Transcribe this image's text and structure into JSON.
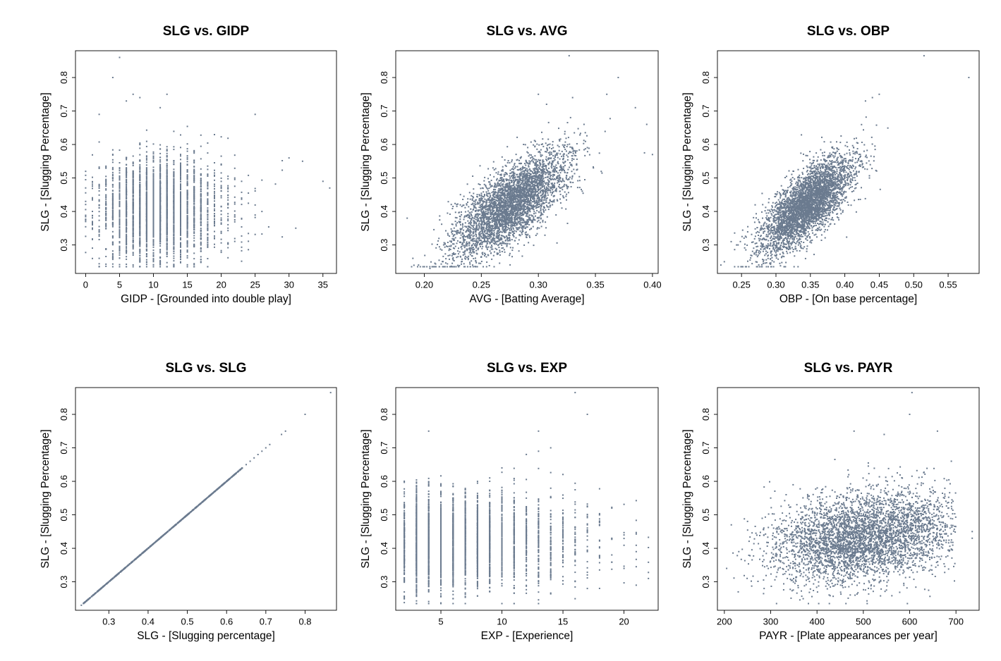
{
  "figure": {
    "point_color": "#6b7b8f",
    "axis_color": "#000000",
    "background": "#ffffff"
  },
  "chart_data": [
    {
      "type": "scatter",
      "title": "SLG vs. GIDP",
      "xlabel": "GIDP - [Grounded into double play]",
      "ylabel": "SLG - [Slugging Percentage]",
      "xlim": [
        -1.5,
        37
      ],
      "ylim": [
        0.215,
        0.88
      ],
      "xticks": [
        0,
        5,
        10,
        15,
        20,
        25,
        30,
        35
      ],
      "xtick_labels": [
        "0",
        "5",
        "10",
        "15",
        "20",
        "25",
        "30",
        "35"
      ],
      "yticks": [
        0.3,
        0.4,
        0.5,
        0.6,
        0.7,
        0.8
      ],
      "ytick_labels": [
        "0.3",
        "0.4",
        "0.5",
        "0.6",
        "0.7",
        "0.8"
      ],
      "x_discrete": true,
      "shape": {
        "kind": "gidp",
        "n": 3000,
        "x_min": 0,
        "x_max": 36,
        "x_peak": 10,
        "y_mean": 0.41,
        "y_sd": 0.075
      },
      "highlight_points": [
        [
          5,
          0.86
        ],
        [
          4,
          0.8
        ],
        [
          7,
          0.75
        ],
        [
          12,
          0.75
        ],
        [
          8,
          0.74
        ],
        [
          6,
          0.73
        ],
        [
          11,
          0.71
        ],
        [
          25,
          0.69
        ],
        [
          2,
          0.69
        ],
        [
          36,
          0.47
        ],
        [
          35,
          0.49
        ],
        [
          31,
          0.35
        ],
        [
          32,
          0.55
        ],
        [
          30,
          0.56
        ],
        [
          0,
          0.43
        ],
        [
          1,
          0.36
        ],
        [
          2,
          0.26
        ]
      ]
    },
    {
      "type": "scatter",
      "title": "SLG vs. AVG",
      "xlabel": "AVG - [Batting Average]",
      "ylabel": "SLG - [Slugging Percentage]",
      "xlim": [
        0.175,
        0.405
      ],
      "ylim": [
        0.215,
        0.88
      ],
      "xticks": [
        0.2,
        0.25,
        0.3,
        0.35,
        0.4
      ],
      "xtick_labels": [
        "0.20",
        "0.25",
        "0.30",
        "0.35",
        "0.40"
      ],
      "yticks": [
        0.3,
        0.4,
        0.5,
        0.6,
        0.7,
        0.8
      ],
      "ytick_labels": [
        "0.3",
        "0.4",
        "0.5",
        "0.6",
        "0.7",
        "0.8"
      ],
      "x_discrete": false,
      "shape": {
        "kind": "avg",
        "n": 4000,
        "x_mean": 0.275,
        "x_sd": 0.025,
        "x_min": 0.185,
        "x_max": 0.4,
        "slope": 2.2,
        "y_sd": 0.055
      },
      "highlight_points": [
        [
          0.327,
          0.865
        ],
        [
          0.37,
          0.8
        ],
        [
          0.3,
          0.75
        ],
        [
          0.385,
          0.71
        ],
        [
          0.36,
          0.75
        ],
        [
          0.395,
          0.66
        ],
        [
          0.4,
          0.57
        ],
        [
          0.393,
          0.575
        ],
        [
          0.185,
          0.38
        ],
        [
          0.19,
          0.26
        ],
        [
          0.195,
          0.24
        ],
        [
          0.205,
          0.23
        ],
        [
          0.33,
          0.74
        ]
      ]
    },
    {
      "type": "scatter",
      "title": "SLG vs. OBP",
      "xlabel": "OBP - [On base percentage]",
      "ylabel": "SLG - [Slugging Percentage]",
      "xlim": [
        0.215,
        0.595
      ],
      "ylim": [
        0.215,
        0.88
      ],
      "xticks": [
        0.25,
        0.3,
        0.35,
        0.4,
        0.45,
        0.5,
        0.55
      ],
      "xtick_labels": [
        "0.25",
        "0.30",
        "0.35",
        "0.40",
        "0.45",
        "0.50",
        "0.55"
      ],
      "yticks": [
        0.3,
        0.4,
        0.5,
        0.6,
        0.7,
        0.8
      ],
      "ytick_labels": [
        "0.3",
        "0.4",
        "0.5",
        "0.6",
        "0.7",
        "0.8"
      ],
      "x_discrete": false,
      "shape": {
        "kind": "obp",
        "n": 4000,
        "x_mean": 0.345,
        "x_sd": 0.033,
        "x_min": 0.24,
        "x_max": 0.48,
        "slope": 1.55,
        "y_sd": 0.05
      },
      "highlight_points": [
        [
          0.515,
          0.865
        ],
        [
          0.58,
          0.8
        ],
        [
          0.45,
          0.75
        ],
        [
          0.44,
          0.74
        ],
        [
          0.43,
          0.73
        ],
        [
          0.22,
          0.24
        ],
        [
          0.225,
          0.25
        ],
        [
          0.235,
          0.31
        ],
        [
          0.245,
          0.3
        ]
      ]
    },
    {
      "type": "scatter",
      "title": "SLG vs. SLG",
      "xlabel": "SLG - [Slugging percentage]",
      "ylabel": "SLG - [Slugging Percentage]",
      "xlim": [
        0.215,
        0.88
      ],
      "ylim": [
        0.215,
        0.88
      ],
      "xticks": [
        0.3,
        0.4,
        0.5,
        0.6,
        0.7,
        0.8
      ],
      "xtick_labels": [
        "0.3",
        "0.4",
        "0.5",
        "0.6",
        "0.7",
        "0.8"
      ],
      "yticks": [
        0.3,
        0.4,
        0.5,
        0.6,
        0.7,
        0.8
      ],
      "ytick_labels": [
        "0.3",
        "0.4",
        "0.5",
        "0.6",
        "0.7",
        "0.8"
      ],
      "x_discrete": false,
      "shape": {
        "kind": "identity",
        "n": 900,
        "x_min": 0.235,
        "x_max": 0.64
      },
      "highlight_points": [
        [
          0.865,
          0.865
        ],
        [
          0.8,
          0.8
        ],
        [
          0.75,
          0.75
        ],
        [
          0.74,
          0.74
        ],
        [
          0.71,
          0.71
        ],
        [
          0.7,
          0.7
        ],
        [
          0.69,
          0.69
        ],
        [
          0.68,
          0.68
        ],
        [
          0.67,
          0.67
        ],
        [
          0.66,
          0.66
        ],
        [
          0.65,
          0.65
        ],
        [
          0.23,
          0.23
        ],
        [
          0.24,
          0.24
        ]
      ]
    },
    {
      "type": "scatter",
      "title": "SLG vs. EXP",
      "xlabel": "EXP - [Experience]",
      "ylabel": "SLG - [Slugging Percentage]",
      "xlim": [
        1.3,
        22.8
      ],
      "ylim": [
        0.215,
        0.88
      ],
      "xticks": [
        5,
        10,
        15,
        20
      ],
      "xtick_labels": [
        "5",
        "10",
        "15",
        "20"
      ],
      "yticks": [
        0.3,
        0.4,
        0.5,
        0.6,
        0.7,
        0.8
      ],
      "ytick_labels": [
        "0.3",
        "0.4",
        "0.5",
        "0.6",
        "0.7",
        "0.8"
      ],
      "x_discrete": true,
      "shape": {
        "kind": "exp",
        "n": 3200,
        "x_min": 2,
        "x_max": 22,
        "y_mean": 0.42,
        "y_sd": 0.07
      },
      "highlight_points": [
        [
          16,
          0.865
        ],
        [
          17,
          0.8
        ],
        [
          4,
          0.75
        ],
        [
          13,
          0.75
        ],
        [
          14,
          0.7
        ],
        [
          17,
          0.28
        ],
        [
          21,
          0.29
        ],
        [
          22,
          0.31
        ],
        [
          20,
          0.34
        ],
        [
          21,
          0.39
        ],
        [
          19,
          0.43
        ],
        [
          20,
          0.44
        ],
        [
          19,
          0.52
        ],
        [
          18,
          0.5
        ]
      ]
    },
    {
      "type": "scatter",
      "title": "SLG vs. PAYR",
      "xlabel": "PAYR - [Plate appearances per year]",
      "ylabel": "SLG - [Slugging Percentage]",
      "xlim": [
        185,
        750
      ],
      "ylim": [
        0.215,
        0.88
      ],
      "xticks": [
        200,
        300,
        400,
        500,
        600,
        700
      ],
      "xtick_labels": [
        "200",
        "300",
        "400",
        "500",
        "600",
        "700"
      ],
      "yticks": [
        0.3,
        0.4,
        0.5,
        0.6,
        0.7,
        0.8
      ],
      "ytick_labels": [
        "0.3",
        "0.4",
        "0.5",
        "0.6",
        "0.7",
        "0.8"
      ],
      "x_discrete": false,
      "shape": {
        "kind": "payr",
        "n": 4000,
        "x_min": 200,
        "x_max": 740,
        "y_mean": 0.43,
        "y_sd": 0.065
      },
      "highlight_points": [
        [
          605,
          0.865
        ],
        [
          600,
          0.8
        ],
        [
          545,
          0.74
        ],
        [
          660,
          0.75
        ],
        [
          480,
          0.75
        ],
        [
          735,
          0.43
        ],
        [
          735,
          0.45
        ],
        [
          205,
          0.34
        ],
        [
          215,
          0.47
        ],
        [
          230,
          0.27
        ],
        [
          300,
          0.55
        ],
        [
          690,
          0.66
        ]
      ]
    }
  ]
}
